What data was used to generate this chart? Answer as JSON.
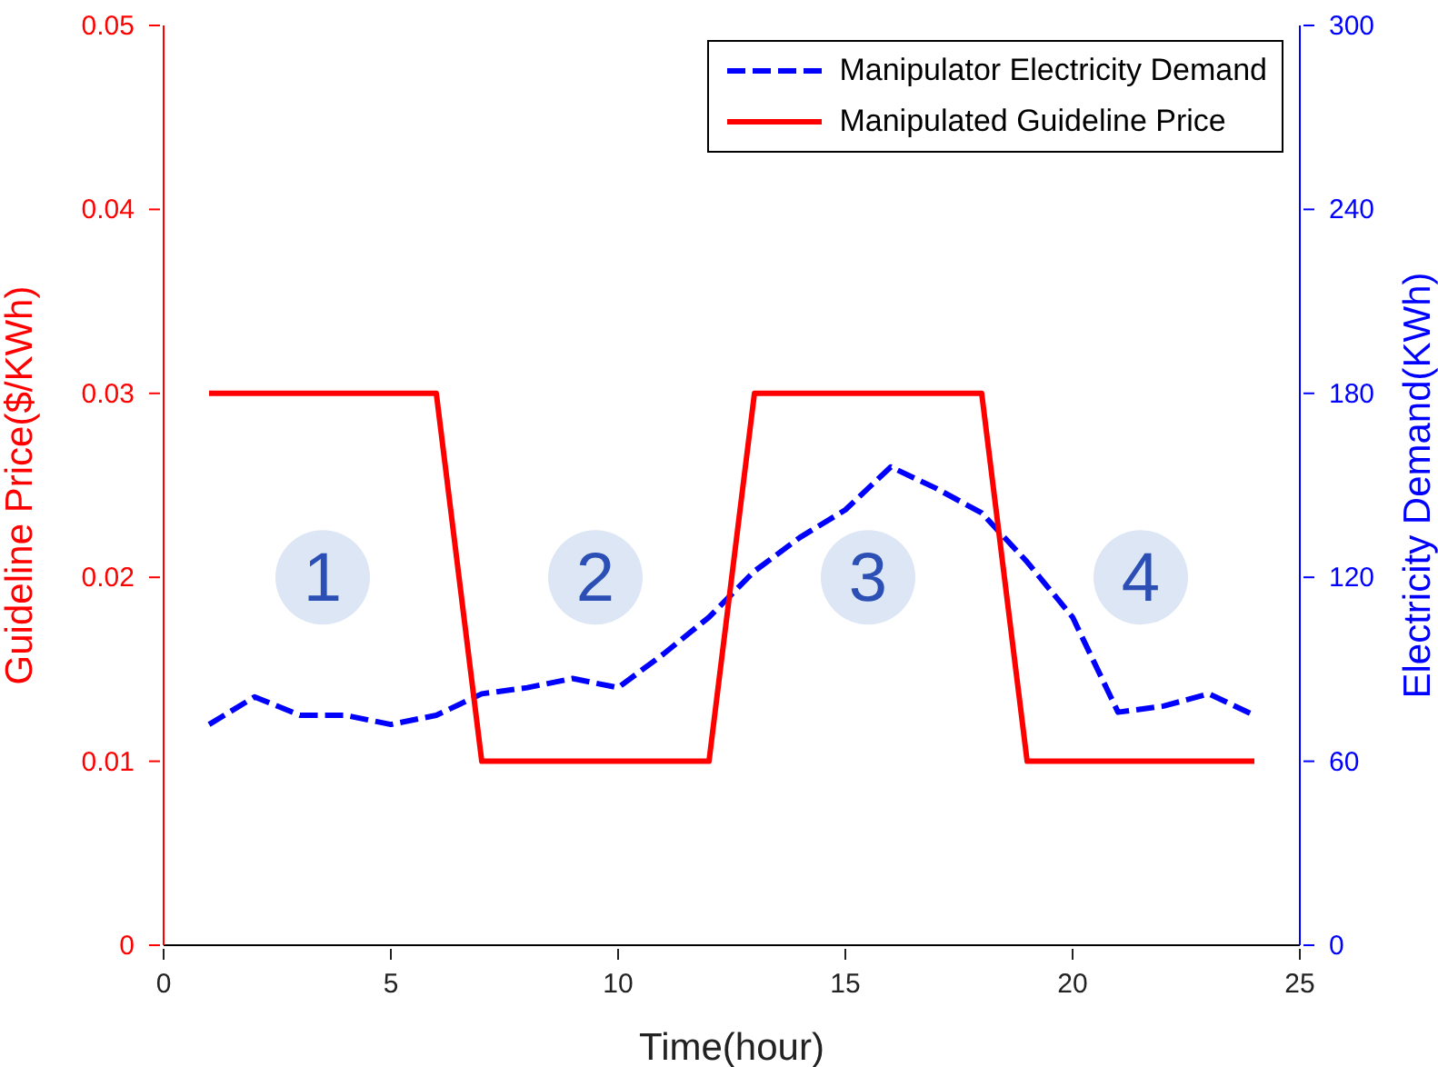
{
  "chart_data": {
    "type": "line",
    "xlabel": "Time(hour)",
    "ylabel": "Guideline Price($/KWh)",
    "y2label": "Electricity Demand(KWh)",
    "x": [
      1,
      2,
      3,
      4,
      5,
      6,
      7,
      8,
      9,
      10,
      11,
      12,
      13,
      14,
      15,
      16,
      17,
      18,
      19,
      20,
      21,
      22,
      23,
      24
    ],
    "series": [
      {
        "name": "Manipulator Electricity Demand",
        "color": "#0000ff",
        "axis": "y2",
        "line_style": "dashed",
        "values": [
          72,
          81,
          75,
          75,
          72,
          75,
          82,
          84,
          87,
          84,
          95,
          107,
          122,
          133,
          142,
          156,
          149,
          141,
          125,
          107,
          76,
          78,
          82,
          75
        ]
      },
      {
        "name": "Manipulated Guideline Price",
        "color": "#ff0000",
        "line_style": "solid",
        "values": [
          0.03,
          0.03,
          0.03,
          0.03,
          0.03,
          0.03,
          0.01,
          0.01,
          0.01,
          0.01,
          0.01,
          0.01,
          0.03,
          0.03,
          0.03,
          0.03,
          0.03,
          0.03,
          0.01,
          0.01,
          0.01,
          0.01,
          0.01,
          0.01
        ]
      }
    ],
    "xlim": [
      0,
      25
    ],
    "xticks": [
      0,
      5,
      10,
      15,
      20,
      25
    ],
    "ylim": [
      0,
      0.05
    ],
    "yticks": [
      0,
      0.01,
      0.02,
      0.03,
      0.04,
      0.05
    ],
    "y2lim": [
      0,
      300
    ],
    "y2ticks": [
      0,
      60,
      120,
      180,
      240,
      300
    ],
    "annotations": [
      "1",
      "2",
      "3",
      "4"
    ],
    "grid": false,
    "legend": "top right",
    "marker": "none"
  }
}
